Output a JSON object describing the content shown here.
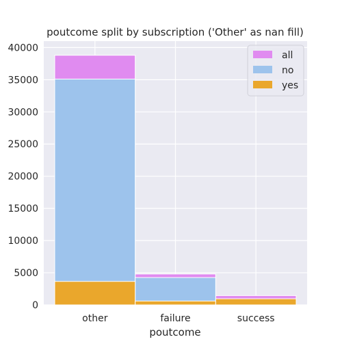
{
  "chart_data": {
    "type": "bar",
    "title": "poutcome split by subscription ('Other' as nan fill)",
    "xlabel": "poutcome",
    "ylabel": "",
    "categories": [
      "other",
      "failure",
      "success"
    ],
    "ylim": [
      0,
      41000
    ],
    "yticks": [
      0,
      5000,
      10000,
      15000,
      20000,
      25000,
      30000,
      35000,
      40000
    ],
    "grid": true,
    "legend_position": "top-right",
    "overlay": true,
    "series": [
      {
        "name": "all",
        "values": [
          38800,
          4800,
          1450
        ],
        "color": "#e08bf0"
      },
      {
        "name": "no",
        "values": [
          35100,
          4250,
          550
        ],
        "color": "#9dc3ec"
      },
      {
        "name": "yes",
        "values": [
          3650,
          600,
          950
        ],
        "color": "#eaa72c"
      }
    ],
    "background": "#eaeaf2"
  }
}
